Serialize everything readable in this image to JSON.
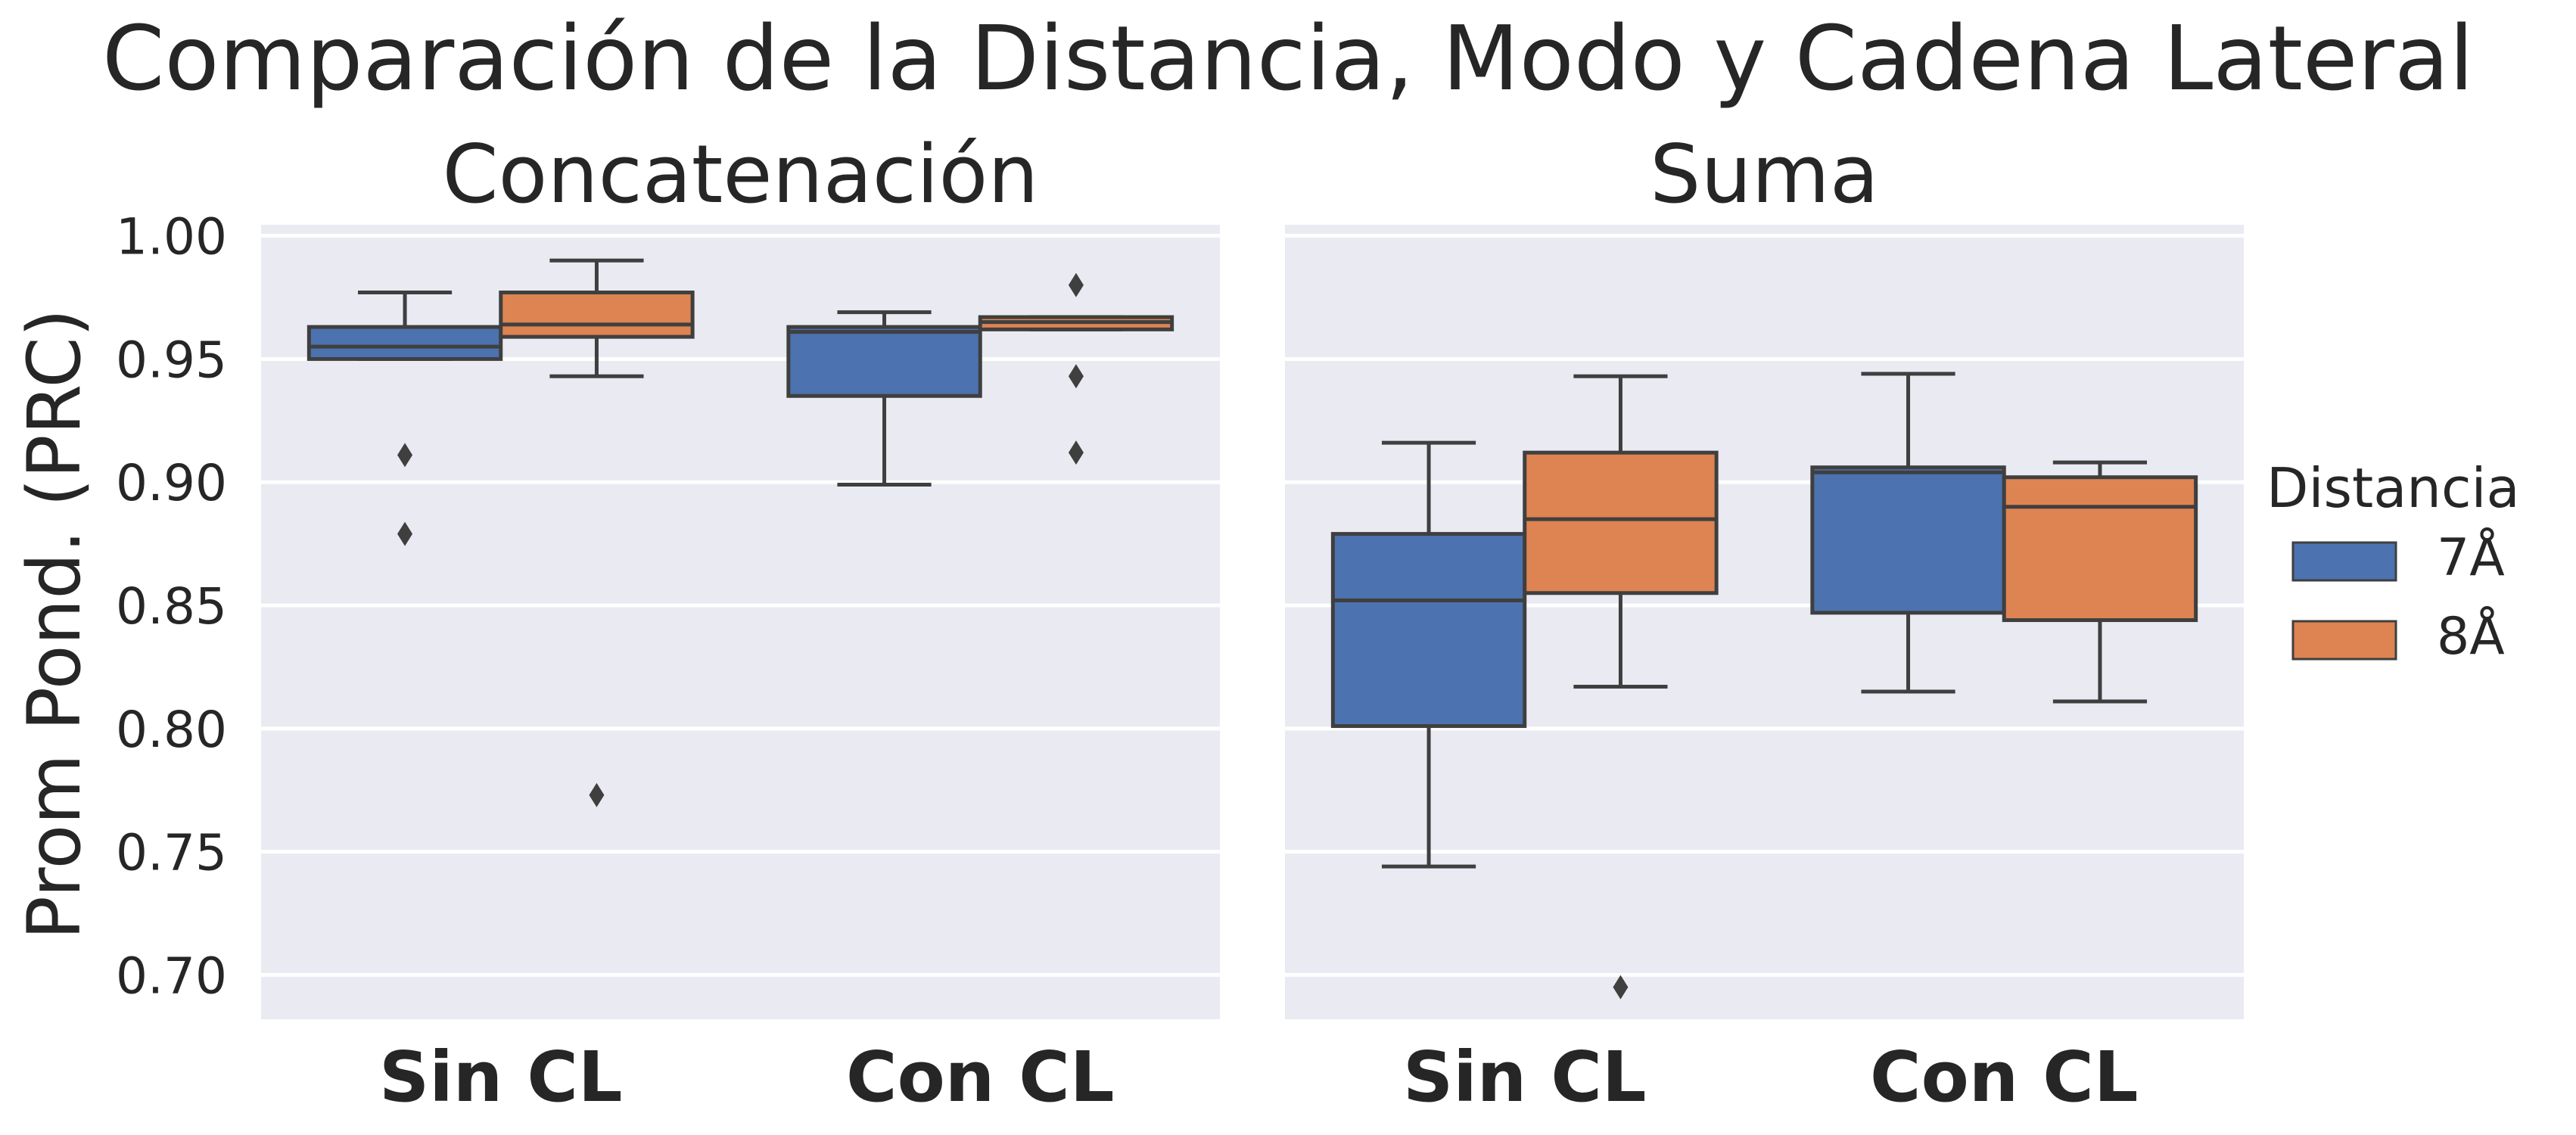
{
  "chart_data": {
    "type": "box",
    "title": "Comparación de la Distancia, Modo y Cadena Lateral",
    "ylabel": "Prom Pond. (PRC)",
    "xlabel": "",
    "ylim": [
      0.682,
      1.0045
    ],
    "yticks": [
      "0.70",
      "0.75",
      "0.80",
      "0.85",
      "0.90",
      "0.95",
      "1.00"
    ],
    "grid": true,
    "legend": {
      "title": "Distancia",
      "position": "right",
      "entries": [
        {
          "label": "7Å",
          "color": "#4c72b0"
        },
        {
          "label": "8Å",
          "color": "#dd8452"
        }
      ]
    },
    "categories": [
      "Sin CL",
      "Con CL"
    ],
    "panels": [
      {
        "title": "Concatenación",
        "groups": [
          {
            "category": "Sin CL",
            "boxes": [
              {
                "series": "7Å",
                "whisker_low": 0.95,
                "q1": 0.95,
                "median": 0.955,
                "q3": 0.963,
                "whisker_high": 0.977,
                "outliers": [
                  0.911,
                  0.879
                ]
              },
              {
                "series": "8Å",
                "whisker_low": 0.943,
                "q1": 0.959,
                "median": 0.964,
                "q3": 0.977,
                "whisker_high": 0.99,
                "outliers": [
                  0.773
                ]
              }
            ]
          },
          {
            "category": "Con CL",
            "boxes": [
              {
                "series": "7Å",
                "whisker_low": 0.899,
                "q1": 0.935,
                "median": 0.961,
                "q3": 0.963,
                "whisker_high": 0.969,
                "outliers": []
              },
              {
                "series": "8Å",
                "whisker_low": 0.962,
                "q1": 0.962,
                "median": 0.965,
                "q3": 0.967,
                "whisker_high": 0.967,
                "outliers": [
                  0.98,
                  0.943,
                  0.912
                ]
              }
            ]
          }
        ]
      },
      {
        "title": "Suma",
        "groups": [
          {
            "category": "Sin CL",
            "boxes": [
              {
                "series": "7Å",
                "whisker_low": 0.744,
                "q1": 0.801,
                "median": 0.852,
                "q3": 0.879,
                "whisker_high": 0.916,
                "outliers": []
              },
              {
                "series": "8Å",
                "whisker_low": 0.817,
                "q1": 0.855,
                "median": 0.885,
                "q3": 0.912,
                "whisker_high": 0.943,
                "outliers": [
                  0.695
                ]
              }
            ]
          },
          {
            "category": "Con CL",
            "boxes": [
              {
                "series": "7Å",
                "whisker_low": 0.815,
                "q1": 0.847,
                "median": 0.904,
                "q3": 0.906,
                "whisker_high": 0.944,
                "outliers": []
              },
              {
                "series": "8Å",
                "whisker_low": 0.811,
                "q1": 0.844,
                "median": 0.89,
                "q3": 0.902,
                "whisker_high": 0.908,
                "outliers": []
              }
            ]
          }
        ]
      }
    ]
  }
}
